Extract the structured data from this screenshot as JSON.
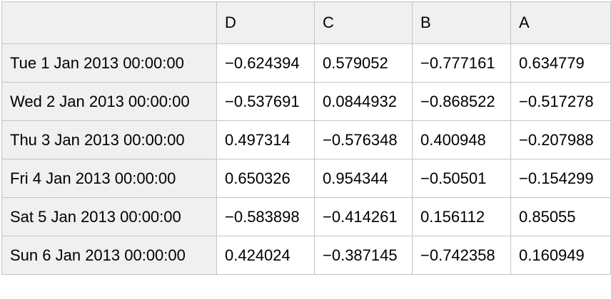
{
  "table": {
    "corner_label": "",
    "columns": [
      "D",
      "C",
      "B",
      "A"
    ],
    "rows": [
      {
        "label": "Tue 1 Jan 2013 00:00:00",
        "values": [
          "−0.624394",
          "0.579052",
          "−0.777161",
          "0.634779"
        ]
      },
      {
        "label": "Wed 2 Jan 2013 00:00:00",
        "values": [
          "−0.537691",
          "0.0844932",
          "−0.868522",
          "−0.517278"
        ]
      },
      {
        "label": "Thu 3 Jan 2013 00:00:00",
        "values": [
          "0.497314",
          "−0.576348",
          "0.400948",
          "−0.207988"
        ]
      },
      {
        "label": "Fri 4 Jan 2013 00:00:00",
        "values": [
          "0.650326",
          "0.954344",
          "−0.50501",
          "−0.154299"
        ]
      },
      {
        "label": "Sat 5 Jan 2013 00:00:00",
        "values": [
          "−0.583898",
          "−0.414261",
          "0.156112",
          "0.85055"
        ]
      },
      {
        "label": "Sun 6 Jan 2013 00:00:00",
        "values": [
          "0.424024",
          "−0.387145",
          "−0.742358",
          "0.160949"
        ]
      }
    ],
    "colors": {
      "header_bg": "#f0f0f0",
      "cell_bg": "#ffffff",
      "border": "#c4c4c4",
      "text": "#000000"
    }
  },
  "chart_data": {
    "type": "table",
    "title": "",
    "columns": [
      "D",
      "C",
      "B",
      "A"
    ],
    "index": [
      "Tue 1 Jan 2013 00:00:00",
      "Wed 2 Jan 2013 00:00:00",
      "Thu 3 Jan 2013 00:00:00",
      "Fri 4 Jan 2013 00:00:00",
      "Sat 5 Jan 2013 00:00:00",
      "Sun 6 Jan 2013 00:00:00"
    ],
    "rows": [
      [
        -0.624394,
        0.579052,
        -0.777161,
        0.634779
      ],
      [
        -0.537691,
        0.0844932,
        -0.868522,
        -0.517278
      ],
      [
        0.497314,
        -0.576348,
        0.400948,
        -0.207988
      ],
      [
        0.650326,
        0.954344,
        -0.50501,
        -0.154299
      ],
      [
        -0.583898,
        -0.414261,
        0.156112,
        0.85055
      ],
      [
        0.424024,
        -0.387145,
        -0.742358,
        0.160949
      ]
    ]
  }
}
